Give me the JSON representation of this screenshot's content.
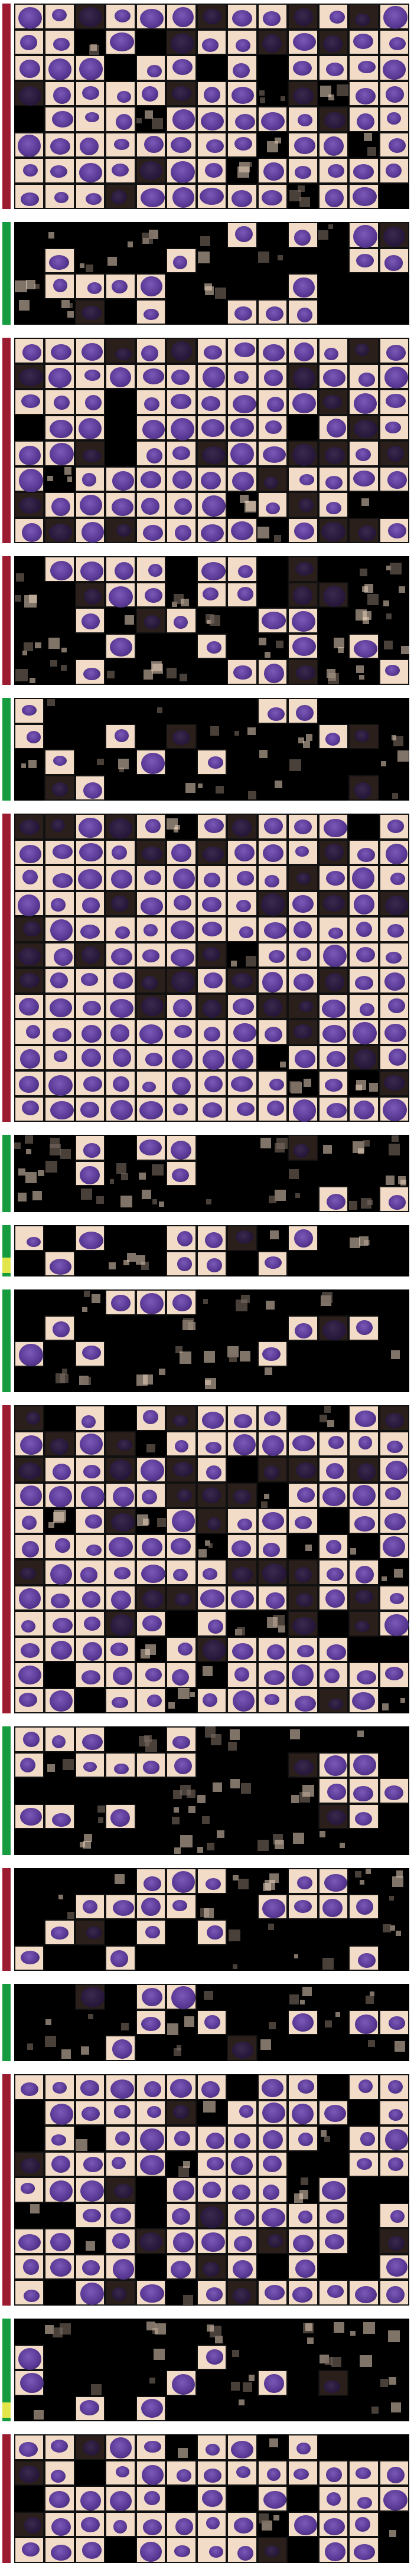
{
  "colors": {
    "background": "#ffffff",
    "grid_fill": "#000000",
    "tile_stain": "#f2dcc8",
    "cell_stain": "#5a3a96",
    "bar_red": "#9b1b30",
    "bar_green": "#169b3e",
    "bar_yellow": "#e3e64a"
  },
  "panels": [
    {
      "bar": "red",
      "mark": "red",
      "rows": 8,
      "cols": 13,
      "tiles": 90
    },
    {
      "bar": "green",
      "mark": "green",
      "rows": 4,
      "cols": 13,
      "tiles": 18
    },
    {
      "bar": "red",
      "mark": "red",
      "rows": 8,
      "cols": 13,
      "tiles": 94
    },
    {
      "bar": "red",
      "mark": "red",
      "rows": 5,
      "cols": 13,
      "tiles": 28
    },
    {
      "bar": "green",
      "mark": "green",
      "rows": 4,
      "cols": 13,
      "tiles": 14
    },
    {
      "bar": "red",
      "mark": "red",
      "rows": 12,
      "cols": 13,
      "tiles": 150
    },
    {
      "bar": "green",
      "mark": "green",
      "rows": 3,
      "cols": 13,
      "tiles": 8
    },
    {
      "bar": "green",
      "mark": "yellow",
      "rows": 2,
      "cols": 13,
      "tiles": 10
    },
    {
      "bar": "green",
      "mark": "green",
      "rows": 4,
      "cols": 13,
      "tiles": 10
    },
    {
      "bar": "red",
      "mark": "red",
      "rows": 12,
      "cols": 13,
      "tiles": 130
    },
    {
      "bar": "green",
      "mark": "green",
      "rows": 5,
      "cols": 13,
      "tiles": 20
    },
    {
      "bar": "red",
      "mark": "red",
      "rows": 4,
      "cols": 13,
      "tiles": 20
    },
    {
      "bar": "green",
      "mark": "green",
      "rows": 3,
      "cols": 13,
      "tiles": 10
    },
    {
      "bar": "red",
      "mark": "red",
      "rows": 9,
      "cols": 13,
      "tiles": 90
    },
    {
      "bar": "green",
      "mark": "yellow",
      "rows": 4,
      "cols": 13,
      "tiles": 8
    },
    {
      "bar": "red",
      "mark": "red",
      "rows": 5,
      "cols": 13,
      "tiles": 50
    }
  ]
}
